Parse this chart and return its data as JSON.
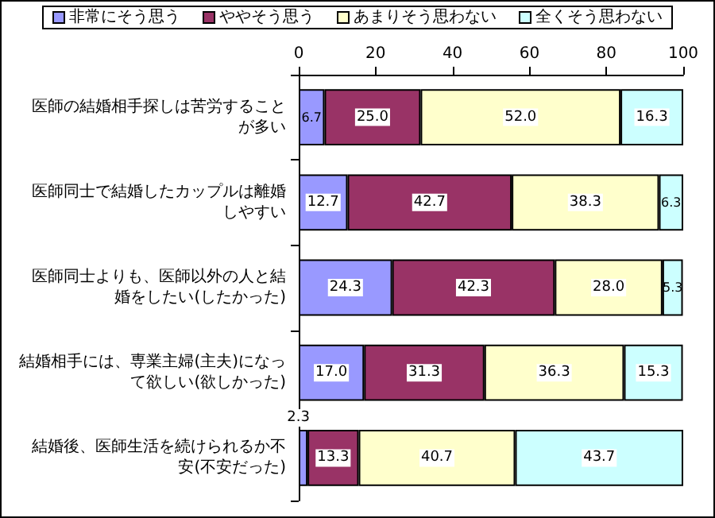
{
  "chart_data": {
    "type": "bar",
    "orientation": "horizontal",
    "stacked": true,
    "legend": "top",
    "grid": false,
    "categories": [
      "医師の結婚相手探しは苦労することが多い",
      "医師同士で結婚したカップルは離婚しやすい",
      "医師同士よりも、医師以外の人と結婚をしたい(したかった)",
      "結婚相手には、専業主婦(主夫)になって欲しい(欲しかった)",
      "結婚後、医師生活を続けられるか不安(不安だった)"
    ],
    "series": [
      {
        "name": "非常にそう思う",
        "color": "#9999ff",
        "values": [
          6.7,
          12.7,
          24.3,
          17.0,
          2.3
        ],
        "value_labels": [
          "6.7",
          "12.7",
          "24.3",
          "17.0",
          "2.3"
        ]
      },
      {
        "name": "ややそう思う",
        "color": "#993366",
        "values": [
          25.0,
          42.7,
          42.3,
          31.3,
          13.3
        ],
        "value_labels": [
          "25.0",
          "42.7",
          "42.3",
          "31.3",
          "13.3"
        ]
      },
      {
        "name": "あまりそう思わない",
        "color": "#ffffcc",
        "values": [
          52.0,
          38.3,
          28.0,
          36.3,
          40.7
        ],
        "value_labels": [
          "52.0",
          "38.3",
          "28.0",
          "36.3",
          "40.7"
        ]
      },
      {
        "name": "全くそう思わない",
        "color": "#ccffff",
        "values": [
          16.3,
          6.3,
          5.3,
          15.3,
          43.7
        ],
        "value_labels": [
          "16.3",
          "6.3",
          "5.3",
          "15.3",
          "43.7"
        ]
      }
    ],
    "xlim": [
      0,
      100
    ],
    "xticks": [
      0,
      20,
      40,
      60,
      80,
      100
    ]
  }
}
